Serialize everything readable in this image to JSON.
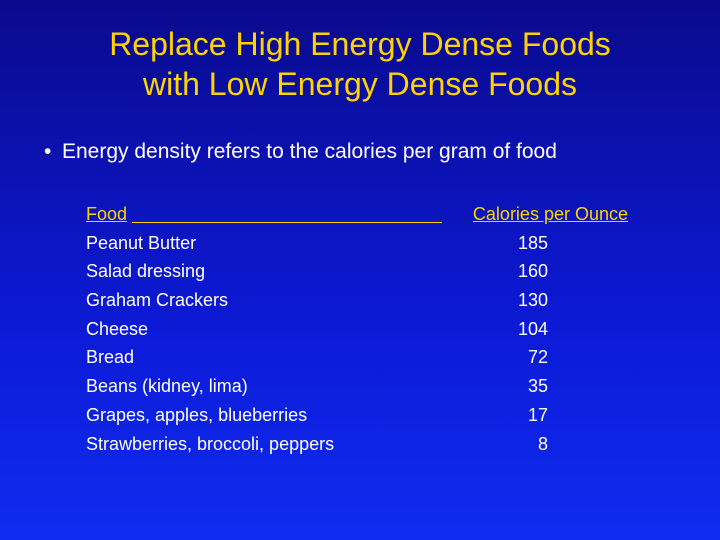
{
  "title_lines": [
    "Replace High Energy Dense Foods",
    "with Low Energy Dense Foods"
  ],
  "bullet": {
    "marker": "•",
    "text": "Energy density refers to the calories per gram of food"
  },
  "table": {
    "headers": {
      "food": "Food",
      "calories": "Calories per Ounce"
    },
    "rows": [
      {
        "food": "Peanut Butter",
        "calories": "185"
      },
      {
        "food": "Salad dressing",
        "calories": "160"
      },
      {
        "food": "Graham Crackers",
        "calories": "130"
      },
      {
        "food": "Cheese",
        "calories": "104"
      },
      {
        "food": "Bread",
        "calories": "72"
      },
      {
        "food": "Beans (kidney, lima)",
        "calories": "35"
      },
      {
        "food": "Grapes, apples, blueberries",
        "calories": "17"
      },
      {
        "food": "Strawberries, broccoli, peppers",
        "calories": "8"
      }
    ]
  },
  "colors": {
    "background_top": "#0a0a8c",
    "background_bottom": "#0f2cf0",
    "title": "#ffd200",
    "body_text": "#ffffff"
  }
}
